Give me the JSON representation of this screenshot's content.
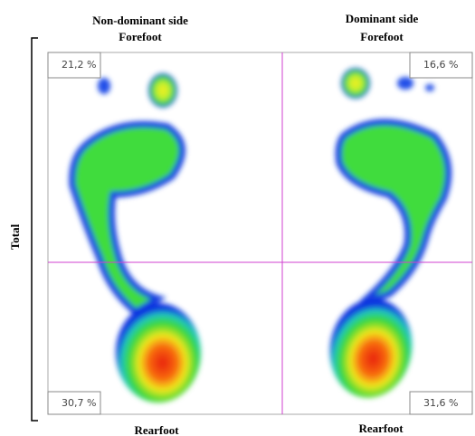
{
  "headers": {
    "left": {
      "line1": "Non-dominant side",
      "line2": "Forefoot"
    },
    "right": {
      "line1": "Dominant side",
      "line2": "Forefoot"
    }
  },
  "side_label": "Total",
  "quadrants": {
    "top_left": "21,2 %",
    "top_right": "16,6 %",
    "bottom_left": "30,7 %",
    "bottom_right": "31,6 %"
  },
  "footers": {
    "left": "Rearfoot",
    "right": "Rearfoot"
  }
}
